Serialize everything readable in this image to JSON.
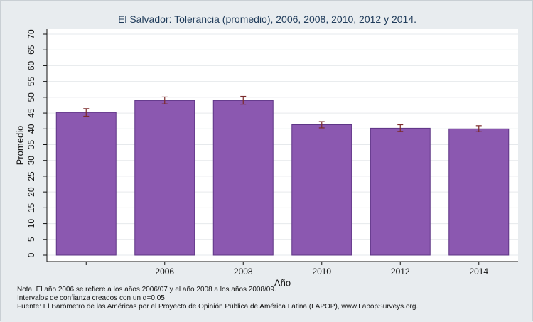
{
  "chart_data": {
    "type": "bar",
    "title": "El Salvador: Tolerancia (promedio), 2006, 2008, 2010, 2012 y 2014.",
    "xlabel": "Año",
    "ylabel": "Promedio",
    "ylim": [
      0,
      70
    ],
    "yticks": [
      0,
      5,
      10,
      15,
      20,
      25,
      30,
      35,
      40,
      45,
      50,
      55,
      60,
      65,
      70
    ],
    "categories": [
      "",
      "2006",
      "2008",
      "2010",
      "2012",
      "2014"
    ],
    "values": [
      45.2,
      49.0,
      49.0,
      41.3,
      40.2,
      40.0
    ],
    "ci_low": [
      44.0,
      47.9,
      47.8,
      40.3,
      39.2,
      39.1
    ],
    "ci_high": [
      46.4,
      50.1,
      50.3,
      42.3,
      41.3,
      41.0
    ],
    "bar_color": "#8b58b0",
    "bar_edge_color": "#5e3585",
    "errorbar_color": "#7b2a2a",
    "grid": true,
    "legend": "none"
  },
  "notes": {
    "line1": "Nota: El año 2006 se refiere a los años 2006/07 y el año 2008 a los años 2008/09.",
    "line2": "Intervalos de confianza creados con un α=0.05",
    "line3": "Fuente: El Barómetro de las Américas por el Proyecto de Opinión Pública de América Latina (LAPOP), www.LapopSurveys.org."
  }
}
